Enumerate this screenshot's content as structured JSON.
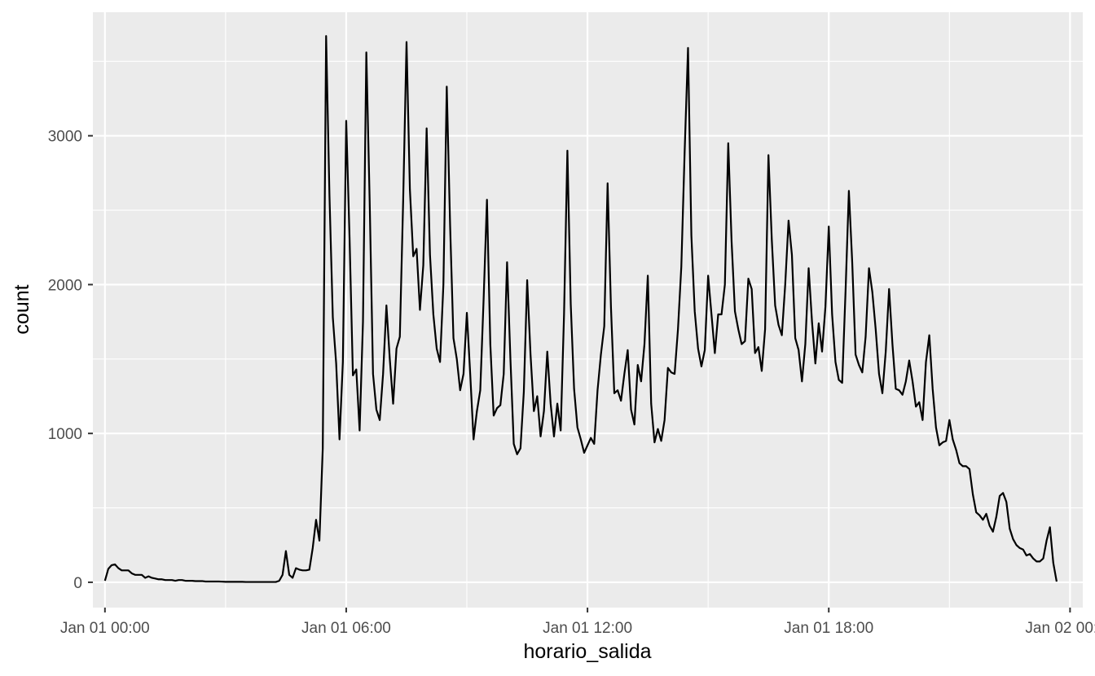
{
  "chart_data": {
    "type": "line",
    "xlabel": "horario_salida",
    "ylabel": "count",
    "x_interval_minutes": 5,
    "x_start": "Jan 01 00:00",
    "xlim": [
      "Dec 31 23:42",
      "Jan 02 00:19"
    ],
    "ylim": [
      -170,
      3830
    ],
    "x_ticks": [
      {
        "label": "Jan 01 00:00",
        "value": "Jan 01 00:00"
      },
      {
        "label": "Jan 01 06:00",
        "value": "Jan 01 06:00"
      },
      {
        "label": "Jan 01 12:00",
        "value": "Jan 01 12:00"
      },
      {
        "label": "Jan 01 18:00",
        "value": "Jan 01 18:00"
      },
      {
        "label": "Jan 02 00:00",
        "value": "Jan 02 00:00"
      }
    ],
    "x_minor_grid": [
      "Jan 01 03:00",
      "Jan 01 09:00",
      "Jan 01 15:00",
      "Jan 01 21:00"
    ],
    "y_ticks": [
      0,
      1000,
      2000,
      3000
    ],
    "y_minor_grid": [
      500,
      1500,
      2500,
      3500
    ],
    "grid": true,
    "legend": "none",
    "colors": {
      "panel": "#ebebeb",
      "grid": "#ffffff",
      "line": "#000000",
      "tick_text": "#4d4d4d"
    },
    "values": [
      10,
      90,
      115,
      120,
      95,
      80,
      80,
      80,
      60,
      50,
      50,
      50,
      30,
      40,
      30,
      25,
      20,
      20,
      15,
      15,
      15,
      10,
      15,
      15,
      10,
      10,
      10,
      8,
      8,
      8,
      5,
      5,
      5,
      5,
      5,
      4,
      3,
      3,
      3,
      3,
      3,
      3,
      2,
      2,
      2,
      2,
      2,
      2,
      2,
      2,
      2,
      2,
      10,
      50,
      210,
      50,
      30,
      95,
      85,
      80,
      80,
      85,
      230,
      420,
      280,
      900,
      3670,
      2600,
      1780,
      1470,
      960,
      1480,
      3100,
      2310,
      1390,
      1430,
      1020,
      1750,
      3560,
      2560,
      1400,
      1160,
      1090,
      1400,
      1860,
      1500,
      1200,
      1570,
      1650,
      2570,
      3630,
      2640,
      2190,
      2240,
      1830,
      2130,
      3050,
      2200,
      1800,
      1570,
      1480,
      2000,
      3330,
      2400,
      1640,
      1500,
      1290,
      1400,
      1810,
      1400,
      960,
      1150,
      1290,
      1900,
      2570,
      1600,
      1120,
      1170,
      1190,
      1400,
      2150,
      1500,
      930,
      860,
      900,
      1280,
      2030,
      1530,
      1150,
      1250,
      980,
      1150,
      1550,
      1200,
      980,
      1200,
      1020,
      1800,
      2900,
      1870,
      1300,
      1040,
      960,
      870,
      920,
      970,
      930,
      1290,
      1530,
      1720,
      2680,
      1850,
      1270,
      1290,
      1220,
      1400,
      1560,
      1160,
      1060,
      1460,
      1350,
      1600,
      2060,
      1200,
      940,
      1030,
      950,
      1090,
      1440,
      1410,
      1400,
      1700,
      2120,
      2900,
      3590,
      2330,
      1820,
      1570,
      1450,
      1560,
      2060,
      1800,
      1540,
      1800,
      1800,
      2000,
      2950,
      2290,
      1820,
      1700,
      1600,
      1620,
      2040,
      1970,
      1540,
      1580,
      1420,
      1700,
      2870,
      2300,
      1860,
      1730,
      1660,
      2000,
      2430,
      2200,
      1640,
      1560,
      1350,
      1600,
      2110,
      1750,
      1470,
      1740,
      1550,
      1850,
      2390,
      1800,
      1480,
      1360,
      1340,
      1950,
      2630,
      2150,
      1530,
      1460,
      1410,
      1650,
      2110,
      1950,
      1700,
      1400,
      1270,
      1550,
      1970,
      1600,
      1300,
      1290,
      1260,
      1350,
      1490,
      1350,
      1180,
      1210,
      1090,
      1480,
      1660,
      1300,
      1040,
      920,
      940,
      950,
      1090,
      960,
      890,
      800,
      780,
      780,
      760,
      590,
      470,
      450,
      420,
      460,
      380,
      340,
      440,
      580,
      600,
      540,
      360,
      290,
      250,
      230,
      220,
      180,
      190,
      160,
      140,
      140,
      160,
      280,
      370,
      130,
      5
    ]
  }
}
